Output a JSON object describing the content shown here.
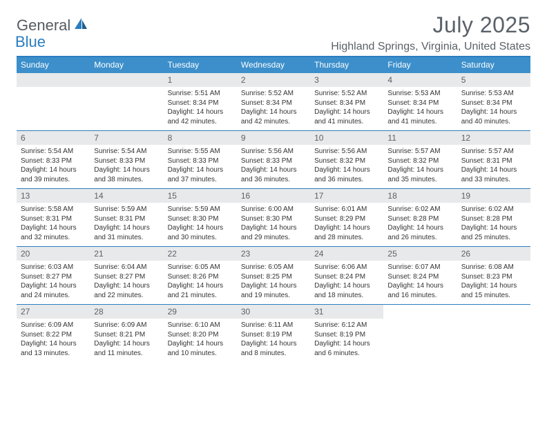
{
  "logo": {
    "text1": "General",
    "text2": "Blue"
  },
  "title": {
    "month_year": "July 2025",
    "location": "Highland Springs, Virginia, United States"
  },
  "colors": {
    "header_bar": "#3c8fca",
    "rule": "#2a7dc0",
    "daynum_bg": "#e8e9ea",
    "text_muted": "#5a6168",
    "body_text": "#333333"
  },
  "day_headers": [
    "Sunday",
    "Monday",
    "Tuesday",
    "Wednesday",
    "Thursday",
    "Friday",
    "Saturday"
  ],
  "weeks": [
    [
      {
        "blank": true
      },
      {
        "blank": true
      },
      {
        "n": "1",
        "sr": "5:51 AM",
        "ss": "8:34 PM",
        "dl": "14 hours and 42 minutes."
      },
      {
        "n": "2",
        "sr": "5:52 AM",
        "ss": "8:34 PM",
        "dl": "14 hours and 42 minutes."
      },
      {
        "n": "3",
        "sr": "5:52 AM",
        "ss": "8:34 PM",
        "dl": "14 hours and 41 minutes."
      },
      {
        "n": "4",
        "sr": "5:53 AM",
        "ss": "8:34 PM",
        "dl": "14 hours and 41 minutes."
      },
      {
        "n": "5",
        "sr": "5:53 AM",
        "ss": "8:34 PM",
        "dl": "14 hours and 40 minutes."
      }
    ],
    [
      {
        "n": "6",
        "sr": "5:54 AM",
        "ss": "8:33 PM",
        "dl": "14 hours and 39 minutes."
      },
      {
        "n": "7",
        "sr": "5:54 AM",
        "ss": "8:33 PM",
        "dl": "14 hours and 38 minutes."
      },
      {
        "n": "8",
        "sr": "5:55 AM",
        "ss": "8:33 PM",
        "dl": "14 hours and 37 minutes."
      },
      {
        "n": "9",
        "sr": "5:56 AM",
        "ss": "8:33 PM",
        "dl": "14 hours and 36 minutes."
      },
      {
        "n": "10",
        "sr": "5:56 AM",
        "ss": "8:32 PM",
        "dl": "14 hours and 36 minutes."
      },
      {
        "n": "11",
        "sr": "5:57 AM",
        "ss": "8:32 PM",
        "dl": "14 hours and 35 minutes."
      },
      {
        "n": "12",
        "sr": "5:57 AM",
        "ss": "8:31 PM",
        "dl": "14 hours and 33 minutes."
      }
    ],
    [
      {
        "n": "13",
        "sr": "5:58 AM",
        "ss": "8:31 PM",
        "dl": "14 hours and 32 minutes."
      },
      {
        "n": "14",
        "sr": "5:59 AM",
        "ss": "8:31 PM",
        "dl": "14 hours and 31 minutes."
      },
      {
        "n": "15",
        "sr": "5:59 AM",
        "ss": "8:30 PM",
        "dl": "14 hours and 30 minutes."
      },
      {
        "n": "16",
        "sr": "6:00 AM",
        "ss": "8:30 PM",
        "dl": "14 hours and 29 minutes."
      },
      {
        "n": "17",
        "sr": "6:01 AM",
        "ss": "8:29 PM",
        "dl": "14 hours and 28 minutes."
      },
      {
        "n": "18",
        "sr": "6:02 AM",
        "ss": "8:28 PM",
        "dl": "14 hours and 26 minutes."
      },
      {
        "n": "19",
        "sr": "6:02 AM",
        "ss": "8:28 PM",
        "dl": "14 hours and 25 minutes."
      }
    ],
    [
      {
        "n": "20",
        "sr": "6:03 AM",
        "ss": "8:27 PM",
        "dl": "14 hours and 24 minutes."
      },
      {
        "n": "21",
        "sr": "6:04 AM",
        "ss": "8:27 PM",
        "dl": "14 hours and 22 minutes."
      },
      {
        "n": "22",
        "sr": "6:05 AM",
        "ss": "8:26 PM",
        "dl": "14 hours and 21 minutes."
      },
      {
        "n": "23",
        "sr": "6:05 AM",
        "ss": "8:25 PM",
        "dl": "14 hours and 19 minutes."
      },
      {
        "n": "24",
        "sr": "6:06 AM",
        "ss": "8:24 PM",
        "dl": "14 hours and 18 minutes."
      },
      {
        "n": "25",
        "sr": "6:07 AM",
        "ss": "8:24 PM",
        "dl": "14 hours and 16 minutes."
      },
      {
        "n": "26",
        "sr": "6:08 AM",
        "ss": "8:23 PM",
        "dl": "14 hours and 15 minutes."
      }
    ],
    [
      {
        "n": "27",
        "sr": "6:09 AM",
        "ss": "8:22 PM",
        "dl": "14 hours and 13 minutes."
      },
      {
        "n": "28",
        "sr": "6:09 AM",
        "ss": "8:21 PM",
        "dl": "14 hours and 11 minutes."
      },
      {
        "n": "29",
        "sr": "6:10 AM",
        "ss": "8:20 PM",
        "dl": "14 hours and 10 minutes."
      },
      {
        "n": "30",
        "sr": "6:11 AM",
        "ss": "8:19 PM",
        "dl": "14 hours and 8 minutes."
      },
      {
        "n": "31",
        "sr": "6:12 AM",
        "ss": "8:19 PM",
        "dl": "14 hours and 6 minutes."
      },
      {
        "blank": true
      },
      {
        "blank": true
      }
    ]
  ],
  "labels": {
    "sunrise": "Sunrise:",
    "sunset": "Sunset:",
    "daylight": "Daylight:"
  }
}
